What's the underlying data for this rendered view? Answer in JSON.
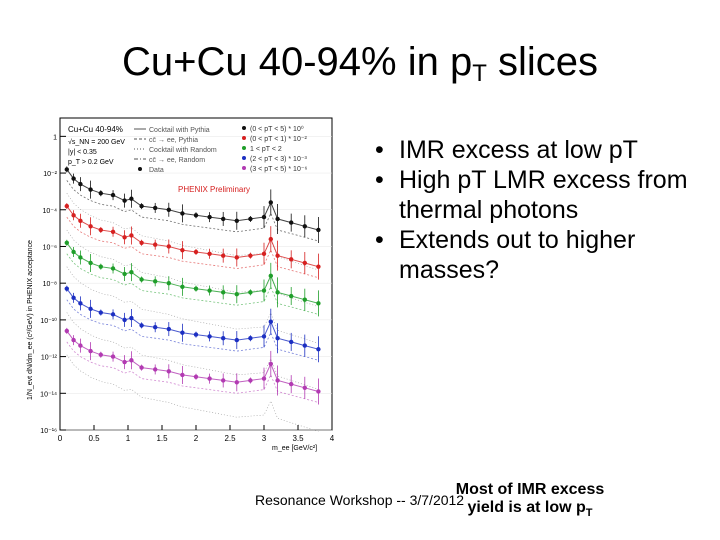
{
  "slide": {
    "title_main": "Cu+Cu 40-94% in p",
    "title_sub": "T",
    "title_end": " slices",
    "bullets": [
      "IMR excess at low pT",
      "High pT LMR excess from thermal photons",
      "Extends out to higher masses?"
    ],
    "footer": "Resonance Workshop -- 3/7/2012",
    "note_line1": "Most of IMR excess",
    "note_line2": "yield is at low p",
    "note_sub": "T"
  },
  "chart_data": {
    "type": "line",
    "title": "Cu+Cu 40-94%",
    "subtitle_lines": [
      "√s_NN = 200 GeV",
      "|y| < 0.35",
      "p_T > 0.2 GeV"
    ],
    "annotation": "PHENIX Preliminary",
    "xlabel": "m_ee [GeV/c²]",
    "ylabel": "1/N_evt dN/dm_ee (c²/GeV) in PHENIX acceptance",
    "side_label": "acceptance",
    "xlim": [
      0,
      4
    ],
    "ylim_log10": [
      -16,
      1
    ],
    "x_ticks": [
      0,
      0.5,
      1,
      1.5,
      2,
      2.5,
      3,
      3.5,
      4
    ],
    "x_tick_labels": [
      "0",
      "0.5",
      "1",
      "1.5",
      "2",
      "2.5",
      "3",
      "3.5",
      "4"
    ],
    "y_tick_exps": [
      0,
      -2,
      -4,
      -6,
      -8,
      -10,
      -12,
      -14,
      -16
    ],
    "y_tick_labels": [
      "1",
      "10⁻²",
      "10⁻⁴",
      "10⁻⁶",
      "10⁻⁸",
      "10⁻¹⁰",
      "10⁻¹²",
      "10⁻¹⁴",
      "10⁻¹⁶"
    ],
    "legend_left": [
      {
        "label": "Cocktail with Pythia",
        "style": "solid"
      },
      {
        "label": "cc̄ → ee, Pythia",
        "style": "dashed"
      },
      {
        "label": "Cocktail with Random",
        "style": "dotted"
      },
      {
        "label": "cc̄ → ee, Random",
        "style": "dashdot"
      },
      {
        "label": "Data",
        "style": "marker"
      }
    ],
    "series": [
      {
        "name": "(0 < pT < 5) * 10⁰",
        "color": "#111111",
        "offset": 0
      },
      {
        "name": "(0 < pT < 1) * 10⁻²",
        "color": "#d62020",
        "offset": -2
      },
      {
        "name": "1 < pT < 2",
        "color": "#1f9e2a",
        "offset": -4
      },
      {
        "name": "(2 < pT < 3) * 10⁻³",
        "color": "#1c2fc2",
        "offset": -6.5
      },
      {
        "name": "(3 < pT < 5) * 10⁻⁶",
        "color": "#b23ab2",
        "offset": -8.8
      }
    ],
    "base_x": [
      0.1,
      0.2,
      0.3,
      0.45,
      0.6,
      0.78,
      0.95,
      1.05,
      1.2,
      1.4,
      1.6,
      1.8,
      2.0,
      2.2,
      2.4,
      2.6,
      2.8,
      3.0,
      3.1,
      3.2,
      3.4,
      3.6,
      3.8
    ],
    "base_y": [
      -1.8,
      -2.3,
      -2.6,
      -2.9,
      -3.1,
      -3.2,
      -3.5,
      -3.4,
      -3.8,
      -3.9,
      -4.0,
      -4.2,
      -4.3,
      -4.4,
      -4.5,
      -4.6,
      -4.5,
      -4.4,
      -3.6,
      -4.5,
      -4.7,
      -4.9,
      -5.1
    ]
  }
}
